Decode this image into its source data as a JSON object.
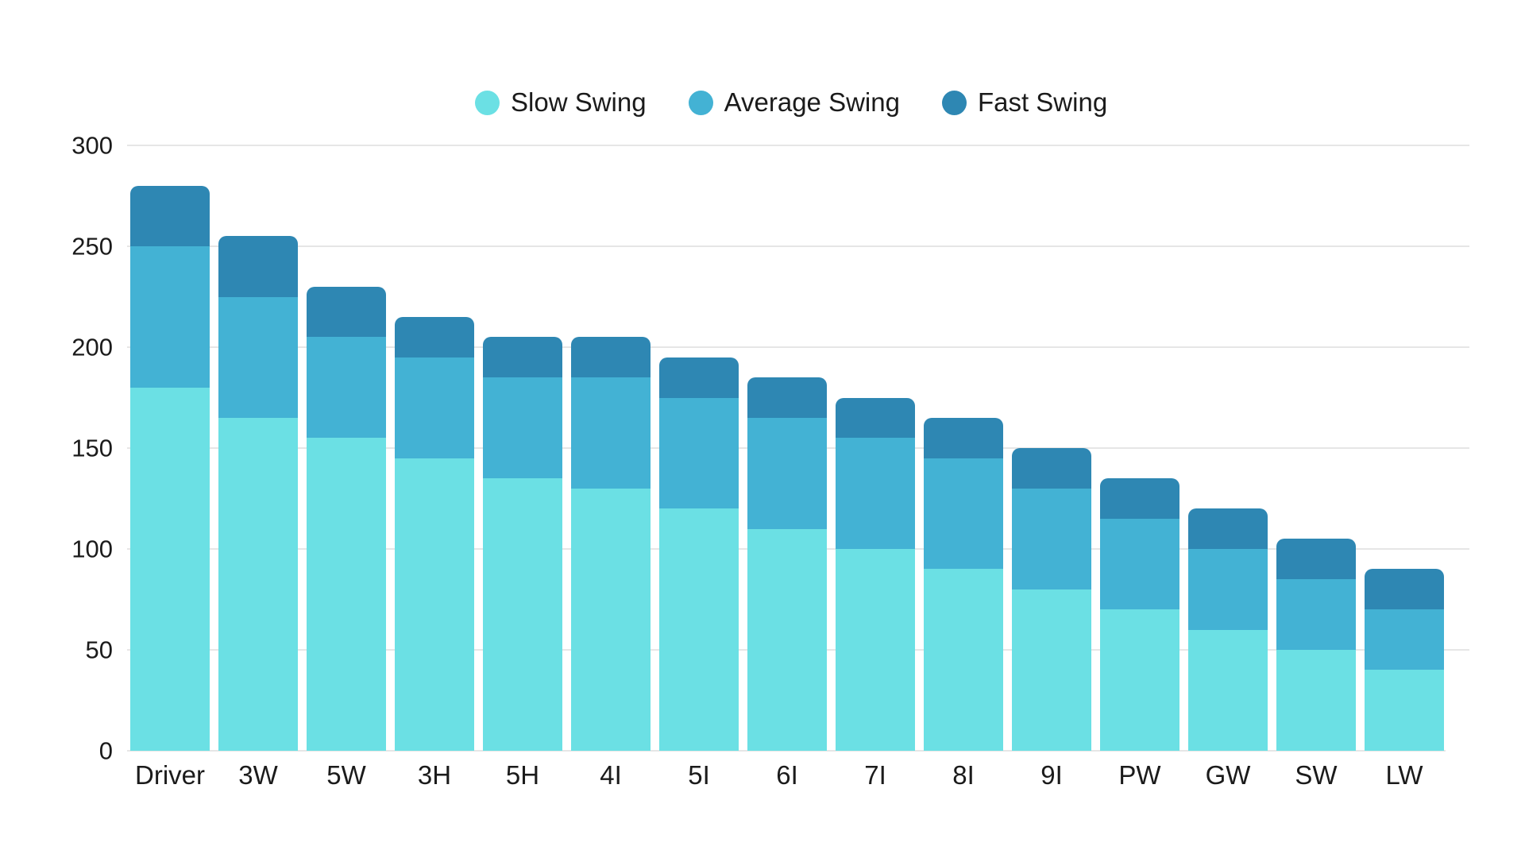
{
  "legend": {
    "items": [
      {
        "label": "Slow Swing",
        "color": "#6BE0E4"
      },
      {
        "label": "Average Swing",
        "color": "#43B2D4"
      },
      {
        "label": "Fast Swing",
        "color": "#2E87B3"
      }
    ]
  },
  "axes": {
    "yticks": [
      0,
      50,
      100,
      150,
      200,
      250,
      300
    ]
  },
  "chart_data": {
    "type": "bar",
    "bar_style": "overlapped-columns (each series drawn from 0, tallest behind)",
    "title": "",
    "xlabel": "",
    "ylabel": "",
    "ylim": [
      0,
      300
    ],
    "yticks": [
      0,
      50,
      100,
      150,
      200,
      250,
      300
    ],
    "grid": true,
    "legend_position": "top-center",
    "categories": [
      "Driver",
      "3W",
      "5W",
      "3H",
      "5H",
      "4I",
      "5I",
      "6I",
      "7I",
      "8I",
      "9I",
      "PW",
      "GW",
      "SW",
      "LW"
    ],
    "series": [
      {
        "name": "Slow Swing",
        "color": "#6BE0E4",
        "values": [
          180,
          165,
          155,
          145,
          135,
          130,
          120,
          110,
          100,
          90,
          80,
          70,
          60,
          50,
          40
        ]
      },
      {
        "name": "Average Swing",
        "color": "#43B2D4",
        "values": [
          250,
          225,
          205,
          195,
          185,
          185,
          175,
          165,
          155,
          145,
          130,
          115,
          100,
          85,
          70
        ]
      },
      {
        "name": "Fast Swing",
        "color": "#2E87B3",
        "values": [
          280,
          255,
          230,
          215,
          205,
          205,
          195,
          185,
          175,
          165,
          150,
          135,
          120,
          105,
          90
        ]
      }
    ],
    "colors": {
      "gridline": "#e6e6e6",
      "text": "#1b1b1b",
      "background": "#ffffff"
    }
  }
}
